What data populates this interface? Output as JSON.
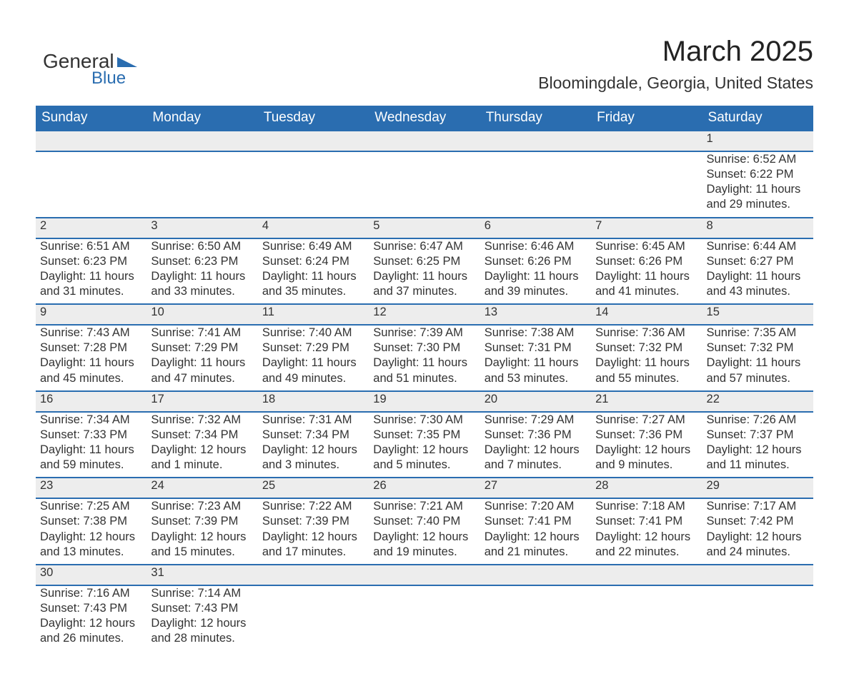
{
  "brand": {
    "main": "General",
    "sub": "Blue",
    "main_color": "#333333",
    "sub_color": "#2a6db0"
  },
  "title": "March 2025",
  "location": "Bloomingdale, Georgia, United States",
  "header_bg": "#2a6db0",
  "header_text_color": "#ffffff",
  "daynum_bg": "#ededed",
  "row_separator_color": "#2a6db0",
  "text_color": "#333333",
  "font_family": "Arial",
  "title_fontsize": 40,
  "location_fontsize": 23,
  "header_fontsize": 19,
  "cell_fontsize": 16.5,
  "daynum_fontsize": 19,
  "day_headers": [
    "Sunday",
    "Monday",
    "Tuesday",
    "Wednesday",
    "Thursday",
    "Friday",
    "Saturday"
  ],
  "weeks": [
    {
      "nums": [
        "",
        "",
        "",
        "",
        "",
        "",
        "1"
      ],
      "cells": [
        null,
        null,
        null,
        null,
        null,
        null,
        {
          "sunrise": "Sunrise: 6:52 AM",
          "sunset": "Sunset: 6:22 PM",
          "day1": "Daylight: 11 hours",
          "day2": "and 29 minutes."
        }
      ]
    },
    {
      "nums": [
        "2",
        "3",
        "4",
        "5",
        "6",
        "7",
        "8"
      ],
      "cells": [
        {
          "sunrise": "Sunrise: 6:51 AM",
          "sunset": "Sunset: 6:23 PM",
          "day1": "Daylight: 11 hours",
          "day2": "and 31 minutes."
        },
        {
          "sunrise": "Sunrise: 6:50 AM",
          "sunset": "Sunset: 6:23 PM",
          "day1": "Daylight: 11 hours",
          "day2": "and 33 minutes."
        },
        {
          "sunrise": "Sunrise: 6:49 AM",
          "sunset": "Sunset: 6:24 PM",
          "day1": "Daylight: 11 hours",
          "day2": "and 35 minutes."
        },
        {
          "sunrise": "Sunrise: 6:47 AM",
          "sunset": "Sunset: 6:25 PM",
          "day1": "Daylight: 11 hours",
          "day2": "and 37 minutes."
        },
        {
          "sunrise": "Sunrise: 6:46 AM",
          "sunset": "Sunset: 6:26 PM",
          "day1": "Daylight: 11 hours",
          "day2": "and 39 minutes."
        },
        {
          "sunrise": "Sunrise: 6:45 AM",
          "sunset": "Sunset: 6:26 PM",
          "day1": "Daylight: 11 hours",
          "day2": "and 41 minutes."
        },
        {
          "sunrise": "Sunrise: 6:44 AM",
          "sunset": "Sunset: 6:27 PM",
          "day1": "Daylight: 11 hours",
          "day2": "and 43 minutes."
        }
      ]
    },
    {
      "nums": [
        "9",
        "10",
        "11",
        "12",
        "13",
        "14",
        "15"
      ],
      "cells": [
        {
          "sunrise": "Sunrise: 7:43 AM",
          "sunset": "Sunset: 7:28 PM",
          "day1": "Daylight: 11 hours",
          "day2": "and 45 minutes."
        },
        {
          "sunrise": "Sunrise: 7:41 AM",
          "sunset": "Sunset: 7:29 PM",
          "day1": "Daylight: 11 hours",
          "day2": "and 47 minutes."
        },
        {
          "sunrise": "Sunrise: 7:40 AM",
          "sunset": "Sunset: 7:29 PM",
          "day1": "Daylight: 11 hours",
          "day2": "and 49 minutes."
        },
        {
          "sunrise": "Sunrise: 7:39 AM",
          "sunset": "Sunset: 7:30 PM",
          "day1": "Daylight: 11 hours",
          "day2": "and 51 minutes."
        },
        {
          "sunrise": "Sunrise: 7:38 AM",
          "sunset": "Sunset: 7:31 PM",
          "day1": "Daylight: 11 hours",
          "day2": "and 53 minutes."
        },
        {
          "sunrise": "Sunrise: 7:36 AM",
          "sunset": "Sunset: 7:32 PM",
          "day1": "Daylight: 11 hours",
          "day2": "and 55 minutes."
        },
        {
          "sunrise": "Sunrise: 7:35 AM",
          "sunset": "Sunset: 7:32 PM",
          "day1": "Daylight: 11 hours",
          "day2": "and 57 minutes."
        }
      ]
    },
    {
      "nums": [
        "16",
        "17",
        "18",
        "19",
        "20",
        "21",
        "22"
      ],
      "cells": [
        {
          "sunrise": "Sunrise: 7:34 AM",
          "sunset": "Sunset: 7:33 PM",
          "day1": "Daylight: 11 hours",
          "day2": "and 59 minutes."
        },
        {
          "sunrise": "Sunrise: 7:32 AM",
          "sunset": "Sunset: 7:34 PM",
          "day1": "Daylight: 12 hours",
          "day2": "and 1 minute."
        },
        {
          "sunrise": "Sunrise: 7:31 AM",
          "sunset": "Sunset: 7:34 PM",
          "day1": "Daylight: 12 hours",
          "day2": "and 3 minutes."
        },
        {
          "sunrise": "Sunrise: 7:30 AM",
          "sunset": "Sunset: 7:35 PM",
          "day1": "Daylight: 12 hours",
          "day2": "and 5 minutes."
        },
        {
          "sunrise": "Sunrise: 7:29 AM",
          "sunset": "Sunset: 7:36 PM",
          "day1": "Daylight: 12 hours",
          "day2": "and 7 minutes."
        },
        {
          "sunrise": "Sunrise: 7:27 AM",
          "sunset": "Sunset: 7:36 PM",
          "day1": "Daylight: 12 hours",
          "day2": "and 9 minutes."
        },
        {
          "sunrise": "Sunrise: 7:26 AM",
          "sunset": "Sunset: 7:37 PM",
          "day1": "Daylight: 12 hours",
          "day2": "and 11 minutes."
        }
      ]
    },
    {
      "nums": [
        "23",
        "24",
        "25",
        "26",
        "27",
        "28",
        "29"
      ],
      "cells": [
        {
          "sunrise": "Sunrise: 7:25 AM",
          "sunset": "Sunset: 7:38 PM",
          "day1": "Daylight: 12 hours",
          "day2": "and 13 minutes."
        },
        {
          "sunrise": "Sunrise: 7:23 AM",
          "sunset": "Sunset: 7:39 PM",
          "day1": "Daylight: 12 hours",
          "day2": "and 15 minutes."
        },
        {
          "sunrise": "Sunrise: 7:22 AM",
          "sunset": "Sunset: 7:39 PM",
          "day1": "Daylight: 12 hours",
          "day2": "and 17 minutes."
        },
        {
          "sunrise": "Sunrise: 7:21 AM",
          "sunset": "Sunset: 7:40 PM",
          "day1": "Daylight: 12 hours",
          "day2": "and 19 minutes."
        },
        {
          "sunrise": "Sunrise: 7:20 AM",
          "sunset": "Sunset: 7:41 PM",
          "day1": "Daylight: 12 hours",
          "day2": "and 21 minutes."
        },
        {
          "sunrise": "Sunrise: 7:18 AM",
          "sunset": "Sunset: 7:41 PM",
          "day1": "Daylight: 12 hours",
          "day2": "and 22 minutes."
        },
        {
          "sunrise": "Sunrise: 7:17 AM",
          "sunset": "Sunset: 7:42 PM",
          "day1": "Daylight: 12 hours",
          "day2": "and 24 minutes."
        }
      ]
    },
    {
      "nums": [
        "30",
        "31",
        "",
        "",
        "",
        "",
        ""
      ],
      "cells": [
        {
          "sunrise": "Sunrise: 7:16 AM",
          "sunset": "Sunset: 7:43 PM",
          "day1": "Daylight: 12 hours",
          "day2": "and 26 minutes."
        },
        {
          "sunrise": "Sunrise: 7:14 AM",
          "sunset": "Sunset: 7:43 PM",
          "day1": "Daylight: 12 hours",
          "day2": "and 28 minutes."
        },
        null,
        null,
        null,
        null,
        null
      ]
    }
  ]
}
